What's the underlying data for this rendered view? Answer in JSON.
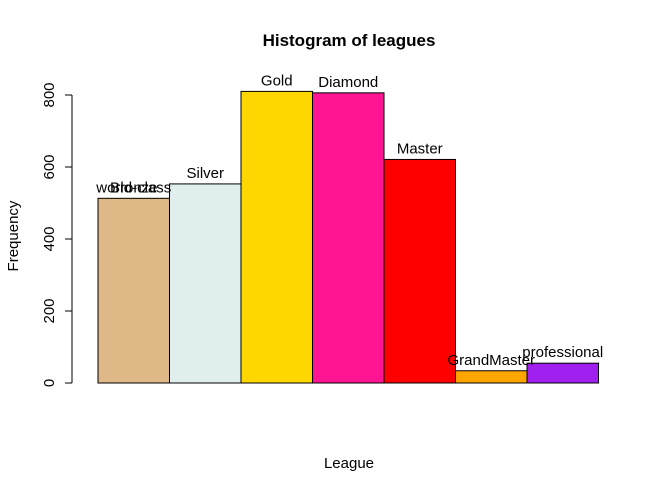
{
  "chart_data": {
    "type": "bar",
    "title": "Histogram of leagues",
    "xlabel": "League",
    "ylabel": "Frequency",
    "categories": [
      "Bronze",
      "Silver",
      "Gold",
      "Diamond",
      "Master",
      "GrandMaster",
      "professional"
    ],
    "extra_labels": [
      {
        "text": "world-class",
        "index": 0
      }
    ],
    "values": [
      513,
      553,
      810,
      806,
      621,
      34,
      55
    ],
    "colors": [
      "#DEB887",
      "#E0EEEE",
      "#FFD700",
      "#FF1493",
      "#FF0000",
      "#FFA500",
      "#A020F0"
    ],
    "yticks": [
      0,
      200,
      400,
      600,
      800
    ],
    "ylim": [
      0,
      820
    ],
    "grid": false,
    "legend": "none"
  }
}
